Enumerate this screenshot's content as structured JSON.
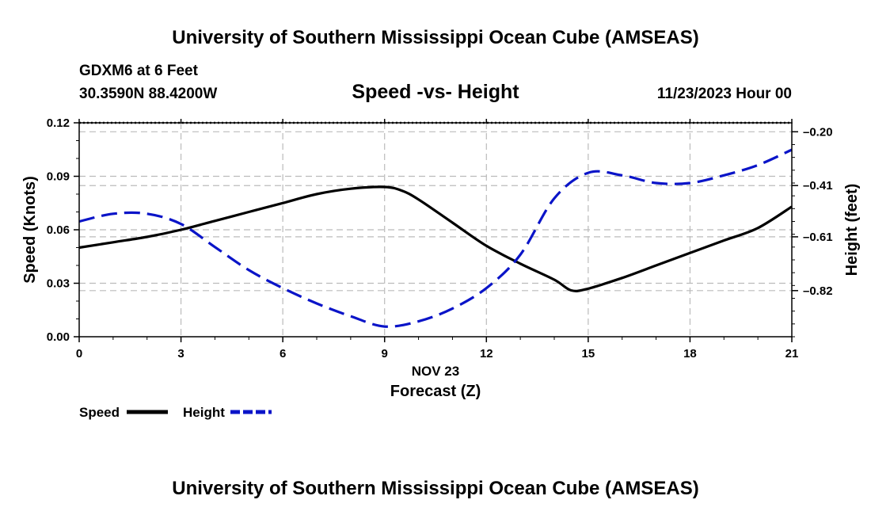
{
  "header": {
    "title": "University of Southern Mississippi Ocean Cube (AMSEAS)",
    "station": "GDXM6 at 6 Feet",
    "coords": "30.3590N  88.4200W",
    "chart_title": "Speed -vs- Height",
    "datetime": "11/23/2023 Hour 00"
  },
  "footer": {
    "title": "University of Southern Mississippi Ocean Cube (AMSEAS)"
  },
  "colors": {
    "speed": "#000000",
    "height": "#0a14c8",
    "grid": "#bbbbbb"
  },
  "chart_data": {
    "type": "line",
    "title": "Speed -vs- Height",
    "xlabel": "Forecast (Z)",
    "xlabel_date": "NOV 23",
    "ylabel": "Speed (Knots)",
    "y2label": "Height (feet)",
    "xlim": [
      0,
      21
    ],
    "ylim": [
      0,
      0.12
    ],
    "y2lim": [
      -1.0,
      -0.165
    ],
    "x_ticks": [
      0,
      3,
      6,
      9,
      12,
      15,
      18,
      21
    ],
    "x_tick_labels": [
      "0",
      "3",
      "6",
      "9",
      "12",
      "15",
      "18",
      "21"
    ],
    "y_ticks": [
      0,
      0.03,
      0.06,
      0.09,
      0.12
    ],
    "y_tick_labels": [
      "0.00",
      "0.03",
      "0.06",
      "0.09",
      "0.12"
    ],
    "y2_ticks": [
      -0.2,
      -0.41,
      -0.61,
      -0.82
    ],
    "y2_tick_labels": [
      "–0.20",
      "–0.41",
      "–0.61",
      "–0.82"
    ],
    "grid": true,
    "legend_position": "bottom-left",
    "series": [
      {
        "name": "Speed",
        "axis": "left",
        "style": "solid",
        "x": [
          0,
          1,
          2,
          3,
          4,
          5,
          6,
          7,
          8,
          9,
          9.5,
          10,
          11,
          12,
          13,
          14,
          14.5,
          15,
          16,
          17,
          18,
          19,
          20,
          21
        ],
        "values": [
          0.05,
          0.053,
          0.056,
          0.06,
          0.065,
          0.07,
          0.075,
          0.08,
          0.083,
          0.084,
          0.082,
          0.077,
          0.064,
          0.051,
          0.041,
          0.032,
          0.026,
          0.027,
          0.033,
          0.04,
          0.047,
          0.054,
          0.061,
          0.073
        ]
      },
      {
        "name": "Height",
        "axis": "right",
        "style": "dashed",
        "x": [
          0,
          1,
          2,
          3,
          4,
          5,
          6,
          7,
          8,
          9,
          10,
          11,
          12,
          13,
          14,
          15,
          16,
          17,
          18,
          19,
          20,
          21
        ],
        "values": [
          -0.55,
          -0.52,
          -0.52,
          -0.56,
          -0.65,
          -0.74,
          -0.81,
          -0.87,
          -0.92,
          -0.96,
          -0.94,
          -0.89,
          -0.81,
          -0.68,
          -0.46,
          -0.36,
          -0.37,
          -0.4,
          -0.4,
          -0.37,
          -0.33,
          -0.27
        ]
      }
    ]
  }
}
